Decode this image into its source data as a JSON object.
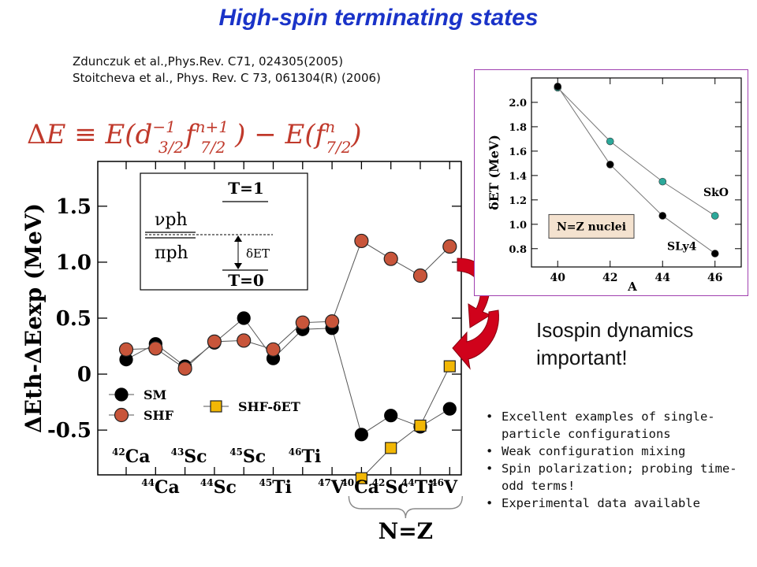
{
  "slide": {
    "title": "High-spin terminating states",
    "references": [
      "Zdunczuk et al.,Phys.Rev. C71,  024305(2005)",
      "Stoitcheva et al., Phys. Rev. C 73, 061304(R) (2006)"
    ],
    "formula": "ΔE ≡ E(d3/2−1 f7/2n+1) − E(f7/2n)",
    "isospin_text": [
      "Isospin dynamics",
      "important!"
    ],
    "bullets": [
      "Excellent examples of single-particle configurations",
      "Weak configuration mixing",
      "Spin polarization; probing time-odd terms!",
      "Experimental data available"
    ],
    "colors": {
      "title": "#1a33c8",
      "formula": "#c0392b",
      "shf": "#c8553a",
      "sm": "#000000",
      "shfdet": "#f2b705",
      "skO": "#2ca89a",
      "arrow": "#d0021b"
    }
  },
  "chart_data": [
    {
      "type": "line",
      "ylabel": "ΔEth-ΔEexp (MeV)",
      "ylim": [
        -0.9,
        1.9
      ],
      "yticks": [
        -0.5,
        0,
        0.5,
        1.0,
        1.5
      ],
      "ytick_labels": [
        "-0.5",
        "0",
        "0.5",
        "1.0",
        "1.5"
      ],
      "categories": [
        "42Ca",
        "44Ca",
        "43Sc",
        "44Sc",
        "45Sc",
        "45Ti",
        "46Ti",
        "47V",
        "40Ca",
        "42Sc",
        "44Ti",
        "46V"
      ],
      "category_labels": [
        {
          "mass": "42",
          "el": "Ca",
          "row": "top"
        },
        {
          "mass": "44",
          "el": "Ca",
          "row": "bottom"
        },
        {
          "mass": "43",
          "el": "Sc",
          "row": "top"
        },
        {
          "mass": "44",
          "el": "Sc",
          "row": "bottom"
        },
        {
          "mass": "45",
          "el": "Sc",
          "row": "top"
        },
        {
          "mass": "45",
          "el": "Ti",
          "row": "bottom"
        },
        {
          "mass": "46",
          "el": "Ti",
          "row": "top"
        },
        {
          "mass": "47",
          "el": "V",
          "row": "bottom"
        },
        {
          "mass": "40",
          "el": "Ca",
          "row": "bottom"
        },
        {
          "mass": "42",
          "el": "Sc",
          "row": "bottom"
        },
        {
          "mass": "44",
          "el": "Ti",
          "row": "bottom"
        },
        {
          "mass": "46",
          "el": "V",
          "row": "bottom"
        }
      ],
      "series": [
        {
          "name": "SM",
          "values": [
            0.13,
            0.27,
            0.07,
            0.28,
            0.5,
            0.14,
            0.4,
            0.41,
            -0.54,
            -0.37,
            -0.47,
            -0.31
          ]
        },
        {
          "name": "SHF",
          "values": [
            0.22,
            0.23,
            0.05,
            0.29,
            0.3,
            0.22,
            0.46,
            0.47,
            1.19,
            1.03,
            0.88,
            1.14
          ]
        },
        {
          "name": "SHF-δET",
          "values": [
            null,
            null,
            null,
            null,
            null,
            null,
            null,
            null,
            -0.93,
            -0.66,
            -0.46,
            0.07
          ]
        }
      ],
      "legend": [
        "SM",
        "SHF",
        "SHF-δET"
      ],
      "group_label": "N=Z",
      "inset_diagram": {
        "upper": "T=1",
        "lower": "T=0",
        "nu": "νph",
        "pi": "πph",
        "gap": "δET"
      }
    },
    {
      "type": "line",
      "xlabel": "A",
      "ylabel": "δET (MeV)",
      "x": [
        40,
        42,
        44,
        46
      ],
      "xticks": [
        40,
        42,
        44,
        46
      ],
      "ylim": [
        0.65,
        2.2
      ],
      "yticks": [
        0.8,
        1.0,
        1.2,
        1.4,
        1.6,
        1.8,
        2.0
      ],
      "ytick_labels": [
        "0.8",
        "1.0",
        "1.2",
        "1.4",
        "1.6",
        "1.8",
        "2.0"
      ],
      "series": [
        {
          "name": "SkO",
          "values": [
            2.12,
            1.68,
            1.35,
            1.07
          ]
        },
        {
          "name": "SLy4",
          "values": [
            2.13,
            1.49,
            1.07,
            0.76
          ]
        }
      ],
      "annotation": "N=Z nuclei"
    }
  ]
}
